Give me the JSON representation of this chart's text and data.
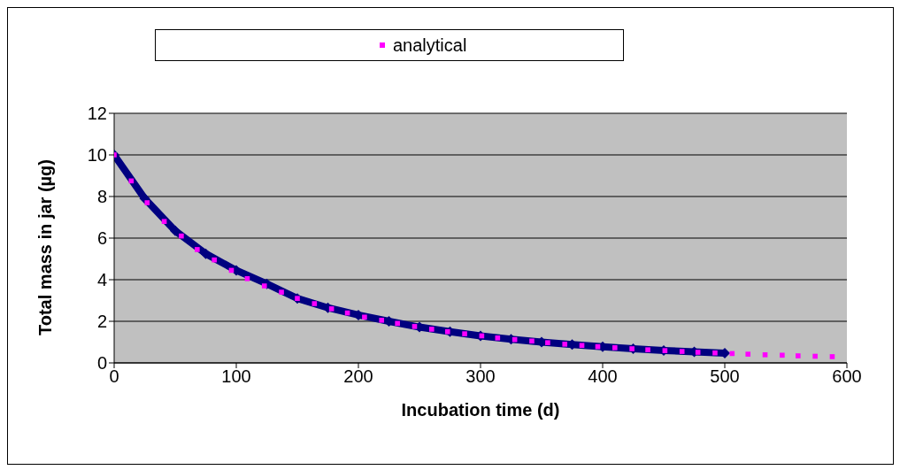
{
  "chart_data": {
    "type": "line",
    "xlabel": "Incubation time (d)",
    "ylabel": "Total mass in jar (µg)",
    "xlim": [
      0,
      600
    ],
    "xticks": [
      0,
      100,
      200,
      300,
      400,
      500,
      600
    ],
    "ylim": [
      0,
      12
    ],
    "yticks": [
      0,
      2,
      4,
      6,
      8,
      10,
      12
    ],
    "grid": "y",
    "legend": "top left",
    "series": [
      {
        "color": "#000080",
        "marker": "diamond",
        "x": [
          0,
          25,
          50,
          75,
          100,
          125,
          150,
          175,
          200,
          225,
          250,
          275,
          300,
          325,
          350,
          375,
          400,
          425,
          450,
          475,
          500
        ],
        "values": [
          10,
          7.9,
          6.35,
          5.25,
          4.45,
          3.8,
          3.1,
          2.65,
          2.3,
          2.0,
          1.72,
          1.5,
          1.3,
          1.14,
          1.0,
          0.88,
          0.78,
          0.68,
          0.6,
          0.53,
          0.47
        ]
      },
      {
        "type": "scatter",
        "name": "analytical",
        "color": "#ff00ff",
        "marker": "square",
        "x": [
          0,
          14,
          27,
          41,
          55,
          68,
          82,
          96,
          109,
          123,
          137,
          150,
          164,
          178,
          191,
          205,
          219,
          232,
          246,
          260,
          273,
          287,
          301,
          314,
          328,
          342,
          355,
          369,
          383,
          396,
          410,
          424,
          437,
          451,
          465,
          478,
          492,
          506,
          519,
          533,
          547,
          560,
          574,
          588
        ],
        "values": [
          10,
          8.75,
          7.7,
          6.8,
          6.1,
          5.45,
          4.95,
          4.45,
          4.05,
          3.7,
          3.4,
          3.1,
          2.85,
          2.6,
          2.4,
          2.2,
          2.05,
          1.9,
          1.75,
          1.62,
          1.5,
          1.4,
          1.3,
          1.2,
          1.12,
          1.05,
          0.97,
          0.9,
          0.84,
          0.78,
          0.73,
          0.68,
          0.63,
          0.59,
          0.55,
          0.51,
          0.48,
          0.45,
          0.42,
          0.39,
          0.37,
          0.34,
          0.32,
          0.3
        ]
      }
    ]
  }
}
